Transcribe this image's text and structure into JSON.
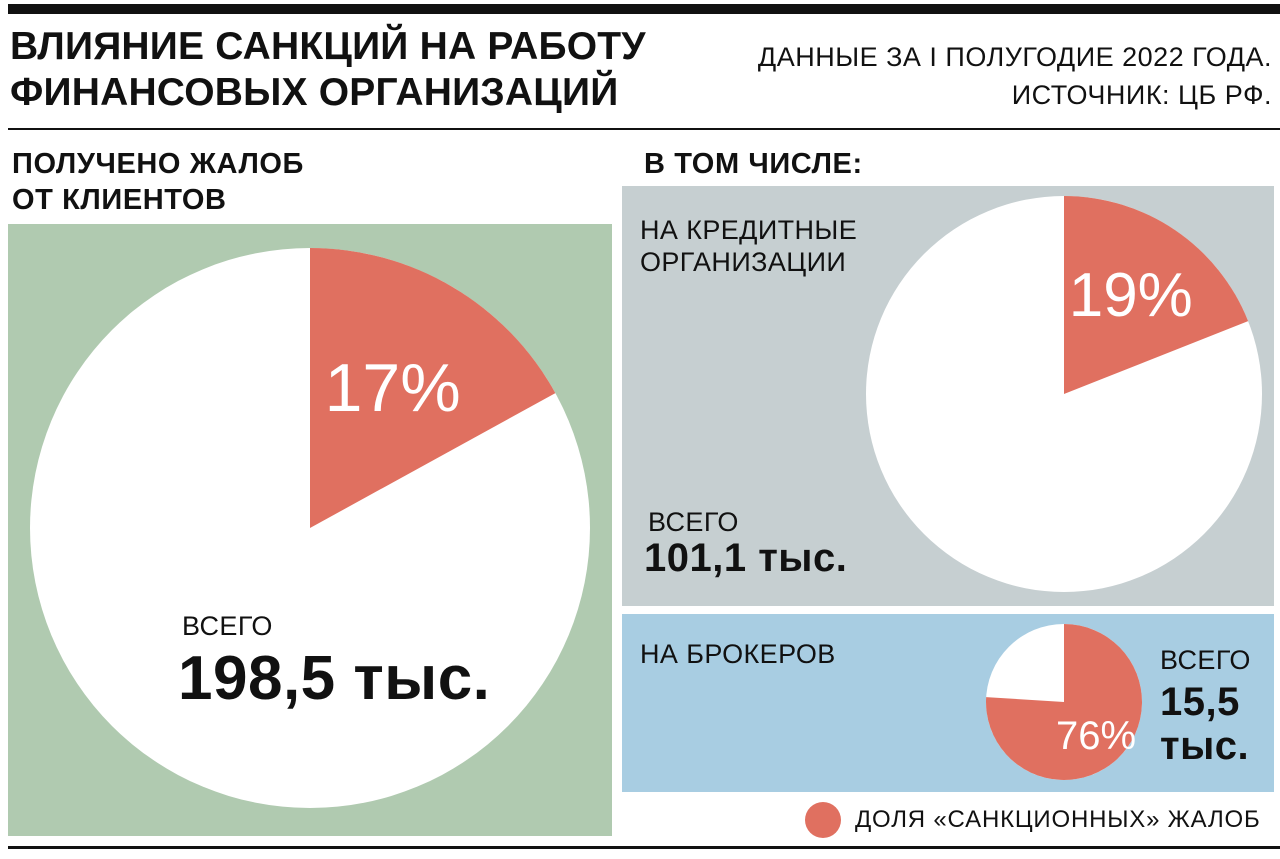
{
  "header": {
    "title_line1": "ВЛИЯНИЕ САНКЦИЙ НА РАБОТУ",
    "title_line2": "ФИНАНСОВЫХ ОРГАНИЗАЦИЙ",
    "source_line1": "ДАННЫЕ ЗА I ПОЛУГОДИЕ 2022 ГОДА.",
    "source_line2": "ИСТОЧНИК: ЦБ РФ."
  },
  "left": {
    "heading_line1": "ПОЛУЧЕНО ЖАЛОБ",
    "heading_line2": "ОТ КЛИЕНТОВ",
    "total_label": "ВСЕГО",
    "total_value": "198,5 тыс.",
    "pct_label": "17%"
  },
  "right": {
    "heading": "В ТОМ ЧИСЛЕ:",
    "credit": {
      "label_line1": "НА КРЕДИТНЫЕ",
      "label_line2": "ОРГАНИЗАЦИИ",
      "total_label": "ВСЕГО",
      "total_value": "101,1 тыс.",
      "pct_label": "19%"
    },
    "brokers": {
      "label": "НА БРОКЕРОВ",
      "total_label": "ВСЕГО",
      "total_value_line1": "15,5",
      "total_value_line2": "тыс.",
      "pct_label": "76%"
    }
  },
  "legend": {
    "label": "ДОЛЯ «САНКЦИОННЫХ» ЖАЛОБ",
    "color": "#e07060"
  },
  "colors": {
    "sanction": "#e07060",
    "other": "#ffffff",
    "panel_total": "#b0cab0",
    "panel_credit": "#c6cfd1",
    "panel_brokers": "#a8cde2"
  },
  "chart_data": [
    {
      "type": "pie",
      "series": [
        {
          "name": "ДОЛЯ «САНКЦИОННЫХ» ЖАЛОБ",
          "values": [
            17,
            83
          ]
        }
      ],
      "total": "198,5 тыс."
    },
    {
      "type": "pie",
      "series": [
        {
          "name": "ДОЛЯ «САНКЦИОННЫХ» ЖАЛОБ",
          "values": [
            19,
            81
          ]
        }
      ],
      "total": "101,1 тыс."
    },
    {
      "type": "pie",
      "series": [
        {
          "name": "ДОЛЯ «САНКЦИОННЫХ» ЖАЛОБ",
          "values": [
            76,
            24
          ]
        }
      ],
      "total": "15,5 тыс."
    }
  ]
}
